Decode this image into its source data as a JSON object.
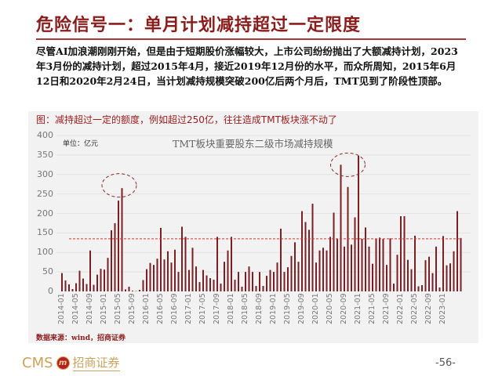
{
  "slide": {
    "title": "危险信号一：单月计划减持超过一定限度",
    "paragraph": "尽管AI加浪潮刚刚开始，但是由于短期股价涨幅较大，上市公司纷纷抛出了大额减持计划，2023年3月份的减持计划，超过2015年4月，接近2019年12月份的水平，而众所周知，2015年6月12日和2020年2月24日，当计划减持规模突破200亿后两个月后，TMT见到了阶段性顶部。",
    "caption": "图：减持超过一定的额度，例如超过250亿，往往造成TMT板块涨不动了",
    "source": "数据来源：wind，招商证券",
    "page_number": "-56-",
    "footer": {
      "brand_en": "CMS",
      "brand_badge": "m",
      "brand_cn": "招商证券"
    }
  },
  "colors": {
    "title": "#8b1c1c",
    "bar": "#7a1f24",
    "threshold": "#e0302a",
    "highlight_ellipse": "#8b2a2a",
    "panel_bg": "#f2f2f2",
    "brand_gold": "#c9a25e"
  },
  "chart_data": {
    "type": "bar",
    "title": "TMT板块重要股东二级市场减持规模",
    "unit_label": "单位：亿元",
    "xlabel": "",
    "ylabel": "",
    "ylim": [
      0,
      400
    ],
    "yticks": [
      0,
      50,
      100,
      150,
      200,
      250,
      300,
      350,
      400
    ],
    "grid": true,
    "legend": "none",
    "threshold_line": {
      "value": 135,
      "style": "dashed",
      "color": "#e0302a"
    },
    "highlights": [
      {
        "label": "2015-06",
        "note": "dashed ellipse around peak"
      },
      {
        "label": "2020-08 to 2021-01",
        "note": "dashed ellipse around peaks"
      }
    ],
    "xtick_labels": [
      "2014-01",
      "2014-05",
      "2014-09",
      "2015-01",
      "2015-05",
      "2015-09",
      "2016-01",
      "2016-05",
      "2016-09",
      "2017-01",
      "2017-05",
      "2017-09",
      "2018-01",
      "2018-05",
      "2018-09",
      "2019-01",
      "2019-05",
      "2019-09",
      "2020-01",
      "2020-05",
      "2020-09",
      "2021-01",
      "2021-05",
      "2021-09",
      "2022-01",
      "2022-05",
      "2022-09",
      "2023-01"
    ],
    "categories": [
      "2014-01",
      "2014-02",
      "2014-03",
      "2014-04",
      "2014-05",
      "2014-06",
      "2014-07",
      "2014-08",
      "2014-09",
      "2014-10",
      "2014-11",
      "2014-12",
      "2015-01",
      "2015-02",
      "2015-03",
      "2015-04",
      "2015-05",
      "2015-06",
      "2015-07",
      "2015-08",
      "2015-09",
      "2015-10",
      "2015-11",
      "2015-12",
      "2016-01",
      "2016-02",
      "2016-03",
      "2016-04",
      "2016-05",
      "2016-06",
      "2016-07",
      "2016-08",
      "2016-09",
      "2016-10",
      "2016-11",
      "2016-12",
      "2017-01",
      "2017-02",
      "2017-03",
      "2017-04",
      "2017-05",
      "2017-06",
      "2017-07",
      "2017-08",
      "2017-09",
      "2017-10",
      "2017-11",
      "2017-12",
      "2018-01",
      "2018-02",
      "2018-03",
      "2018-04",
      "2018-05",
      "2018-06",
      "2018-07",
      "2018-08",
      "2018-09",
      "2018-10",
      "2018-11",
      "2018-12",
      "2019-01",
      "2019-02",
      "2019-03",
      "2019-04",
      "2019-05",
      "2019-06",
      "2019-07",
      "2019-08",
      "2019-09",
      "2019-10",
      "2019-11",
      "2019-12",
      "2020-01",
      "2020-02",
      "2020-03",
      "2020-04",
      "2020-05",
      "2020-06",
      "2020-07",
      "2020-08",
      "2020-09",
      "2020-10",
      "2020-11",
      "2020-12",
      "2021-01",
      "2021-02",
      "2021-03",
      "2021-04",
      "2021-05",
      "2021-06",
      "2021-07",
      "2021-08",
      "2021-09",
      "2021-10",
      "2021-11",
      "2021-12",
      "2022-01",
      "2022-02",
      "2022-03",
      "2022-04",
      "2022-05",
      "2022-06",
      "2022-07",
      "2022-08",
      "2022-09",
      "2022-10",
      "2022-11",
      "2022-12",
      "2023-01",
      "2023-02",
      "2023-03",
      "2023-04"
    ],
    "values": [
      47,
      28,
      18,
      6,
      21,
      53,
      33,
      19,
      105,
      17,
      43,
      58,
      56,
      86,
      157,
      175,
      233,
      265,
      5,
      12,
      2,
      1,
      4,
      29,
      57,
      73,
      68,
      84,
      163,
      82,
      103,
      74,
      107,
      50,
      166,
      140,
      55,
      112,
      64,
      24,
      55,
      41,
      34,
      30,
      140,
      20,
      76,
      105,
      140,
      30,
      50,
      12,
      50,
      64,
      50,
      14,
      50,
      14,
      40,
      55,
      50,
      74,
      161,
      50,
      62,
      91,
      126,
      76,
      206,
      178,
      158,
      225,
      74,
      105,
      112,
      105,
      140,
      202,
      135,
      325,
      115,
      268,
      120,
      190,
      348,
      135,
      164,
      115,
      71,
      135,
      138,
      135,
      68,
      136,
      20,
      94,
      193,
      193,
      81,
      57,
      143,
      13,
      16,
      80,
      89,
      47,
      115,
      10,
      142,
      67,
      72,
      103,
      206,
      137
    ],
    "series": [
      {
        "name": "TMT板块重要股东二级市场减持规模",
        "values": "see values"
      }
    ]
  }
}
